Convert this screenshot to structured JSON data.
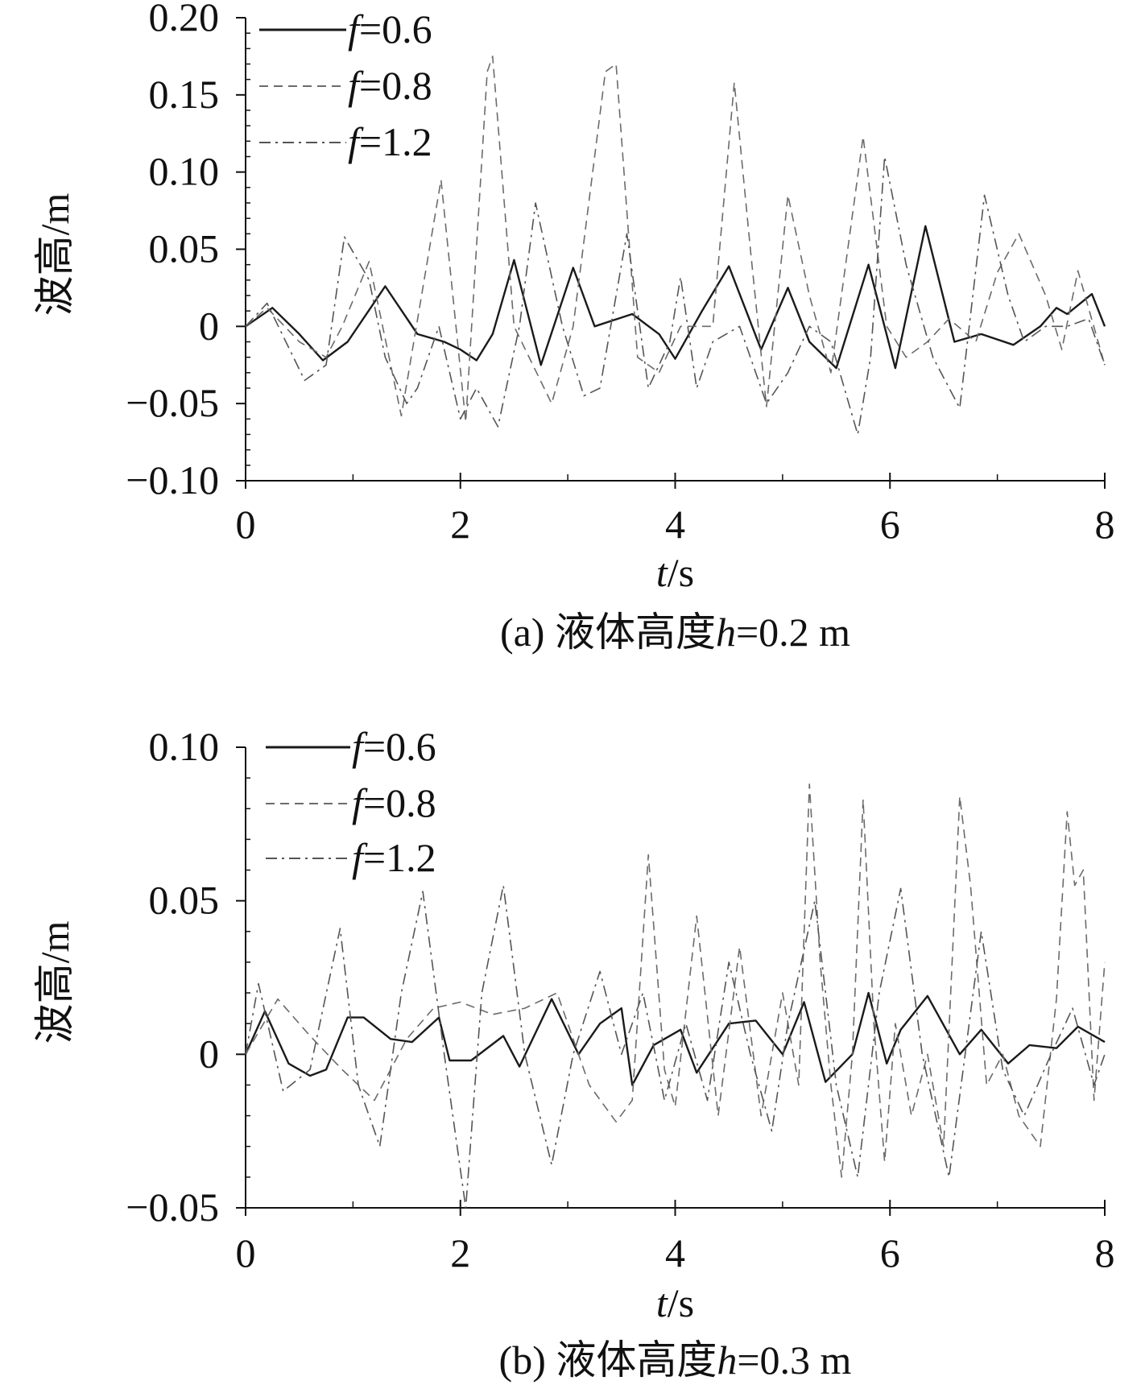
{
  "chart_data": [
    {
      "type": "line",
      "caption": {
        "prefix": "(a) 液体高度",
        "var": "h",
        "suffix": "=0.2 m"
      },
      "xlabel": {
        "var": "t",
        "unit": "/s"
      },
      "ylabel": "波高/m",
      "xlim": [
        0,
        8
      ],
      "ylim": [
        -0.1,
        0.2
      ],
      "xticks": [
        0,
        2,
        4,
        6,
        8
      ],
      "xtick_labels": [
        "0",
        "2",
        "4",
        "6",
        "8"
      ],
      "yticks": [
        -0.1,
        -0.05,
        0,
        0.05,
        0.1,
        0.15,
        0.2
      ],
      "ytick_labels": [
        "−0.10",
        "−0.05",
        "0",
        "0.05",
        "0.10",
        "0.15",
        "0.20"
      ],
      "legend_position": "top-left",
      "grid": false,
      "series": [
        {
          "name": "f=0.6",
          "legend_var": "f",
          "legend_value": "=0.6",
          "style": "solid",
          "color": "#1a1a1a",
          "x": [
            0,
            0.25,
            0.5,
            0.72,
            0.95,
            1.3,
            1.6,
            1.85,
            2.0,
            2.15,
            2.3,
            2.5,
            2.75,
            3.05,
            3.25,
            3.6,
            3.85,
            4.0,
            4.25,
            4.5,
            4.8,
            5.05,
            5.25,
            5.5,
            5.8,
            6.05,
            6.33,
            6.6,
            6.85,
            7.15,
            7.4,
            7.55,
            7.65,
            7.88,
            8.0
          ],
          "y": [
            0.0,
            0.012,
            -0.005,
            -0.022,
            -0.01,
            0.026,
            -0.005,
            -0.01,
            -0.015,
            -0.022,
            -0.005,
            0.043,
            -0.025,
            0.038,
            0.0,
            0.008,
            -0.005,
            -0.021,
            0.01,
            0.039,
            -0.015,
            0.025,
            -0.01,
            -0.027,
            0.04,
            -0.027,
            0.065,
            -0.01,
            -0.005,
            -0.012,
            0.0,
            0.012,
            0.008,
            0.021,
            0.0
          ]
        },
        {
          "name": "f=0.8",
          "legend_var": "f",
          "legend_value": "=0.8",
          "style": "dashed",
          "color": "#6b6b6b",
          "x": [
            0,
            0.2,
            0.5,
            0.75,
            0.9,
            1.15,
            1.45,
            1.82,
            2.05,
            2.25,
            2.3,
            2.5,
            2.85,
            3.05,
            3.35,
            3.45,
            3.65,
            3.85,
            4.05,
            4.35,
            4.55,
            4.7,
            4.85,
            5.05,
            5.25,
            5.45,
            5.75,
            5.97,
            6.15,
            6.35,
            6.55,
            6.8,
            7.0,
            7.2,
            7.45,
            7.6,
            7.75,
            8.0
          ],
          "y": [
            0.0,
            0.012,
            -0.01,
            -0.02,
            0.0,
            0.042,
            -0.058,
            0.095,
            -0.062,
            0.165,
            0.175,
            0.0,
            -0.05,
            0.0,
            0.165,
            0.17,
            -0.02,
            -0.03,
            0.0,
            0.0,
            0.158,
            0.05,
            -0.052,
            0.085,
            0.02,
            -0.03,
            0.123,
            0.0,
            -0.02,
            -0.01,
            0.005,
            -0.01,
            0.035,
            0.06,
            0.02,
            -0.015,
            0.036,
            -0.025
          ]
        },
        {
          "name": "f=1.2",
          "legend_var": "f",
          "legend_value": "=1.2",
          "style": "dashdot",
          "color": "#555555",
          "x": [
            0,
            0.2,
            0.55,
            0.75,
            0.92,
            1.15,
            1.3,
            1.5,
            1.6,
            1.8,
            2.0,
            2.15,
            2.35,
            2.55,
            2.7,
            2.95,
            3.15,
            3.3,
            3.55,
            3.75,
            3.95,
            4.05,
            4.2,
            4.35,
            4.6,
            4.85,
            5.05,
            5.25,
            5.45,
            5.7,
            5.82,
            5.95,
            6.15,
            6.4,
            6.65,
            6.88,
            7.1,
            7.25,
            7.45,
            7.65,
            7.85,
            8.0
          ],
          "y": [
            0.0,
            0.015,
            -0.035,
            -0.025,
            0.058,
            0.03,
            -0.02,
            -0.05,
            -0.04,
            0.0,
            -0.06,
            -0.04,
            -0.065,
            0.0,
            0.08,
            0.0,
            -0.045,
            -0.04,
            0.06,
            -0.04,
            -0.01,
            0.032,
            -0.04,
            -0.01,
            0.0,
            -0.05,
            -0.03,
            0.0,
            -0.01,
            -0.07,
            -0.02,
            0.11,
            0.04,
            -0.02,
            -0.053,
            0.085,
            0.02,
            -0.01,
            0.0,
            0.0,
            0.005,
            -0.025
          ]
        }
      ]
    },
    {
      "type": "line",
      "caption": {
        "prefix": "(b) 液体高度",
        "var": "h",
        "suffix": "=0.3 m"
      },
      "xlabel": {
        "var": "t",
        "unit": "/s"
      },
      "ylabel": "波高/m",
      "xlim": [
        0,
        8
      ],
      "ylim": [
        -0.05,
        0.1
      ],
      "xticks": [
        0,
        2,
        4,
        6,
        8
      ],
      "xtick_labels": [
        "0",
        "2",
        "4",
        "6",
        "8"
      ],
      "yticks": [
        -0.05,
        0,
        0.05,
        0.1
      ],
      "ytick_labels": [
        "−0.05",
        "0",
        "0.05",
        "0.10"
      ],
      "legend_position": "top-left",
      "grid": false,
      "series": [
        {
          "name": "f=0.6",
          "legend_var": "f",
          "legend_value": "=0.6",
          "style": "solid",
          "color": "#1a1a1a",
          "x": [
            0,
            0.18,
            0.4,
            0.6,
            0.75,
            0.95,
            1.1,
            1.35,
            1.55,
            1.8,
            1.9,
            2.1,
            2.4,
            2.55,
            2.85,
            3.1,
            3.3,
            3.5,
            3.6,
            3.8,
            4.05,
            4.2,
            4.5,
            4.75,
            5.0,
            5.2,
            5.4,
            5.65,
            5.8,
            5.97,
            6.1,
            6.35,
            6.65,
            6.85,
            7.1,
            7.3,
            7.55,
            7.75,
            8.0
          ],
          "y": [
            0.0,
            0.014,
            -0.003,
            -0.007,
            -0.005,
            0.012,
            0.012,
            0.005,
            0.004,
            0.012,
            -0.002,
            -0.002,
            0.006,
            -0.004,
            0.018,
            0.0,
            0.01,
            0.015,
            -0.01,
            0.003,
            0.008,
            -0.006,
            0.01,
            0.011,
            0.0,
            0.017,
            -0.009,
            0.0,
            0.02,
            -0.003,
            0.008,
            0.019,
            0.0,
            0.008,
            -0.003,
            0.003,
            0.002,
            0.009,
            0.004
          ]
        },
        {
          "name": "f=0.8",
          "legend_var": "f",
          "legend_value": "=0.8",
          "style": "dashed",
          "color": "#6b6b6b",
          "x": [
            0,
            0.3,
            0.6,
            0.9,
            1.2,
            1.5,
            1.75,
            2.0,
            2.3,
            2.6,
            2.9,
            3.2,
            3.45,
            3.6,
            3.75,
            3.9,
            4.0,
            4.2,
            4.4,
            4.6,
            4.8,
            5.0,
            5.15,
            5.25,
            5.35,
            5.45,
            5.55,
            5.65,
            5.75,
            5.85,
            5.95,
            6.05,
            6.2,
            6.35,
            6.5,
            6.65,
            6.75,
            6.9,
            7.05,
            7.2,
            7.4,
            7.55,
            7.65,
            7.72,
            7.8,
            7.9,
            8.0
          ],
          "y": [
            0.0,
            0.018,
            0.006,
            -0.005,
            -0.015,
            0.005,
            0.015,
            0.017,
            0.013,
            0.015,
            0.02,
            -0.01,
            -0.022,
            -0.015,
            0.065,
            -0.005,
            -0.017,
            0.045,
            -0.02,
            0.035,
            -0.02,
            0.02,
            -0.01,
            0.088,
            0.03,
            -0.01,
            -0.04,
            0.0,
            0.083,
            0.01,
            -0.035,
            0.01,
            -0.02,
            0.0,
            -0.03,
            0.084,
            0.055,
            -0.01,
            0.0,
            -0.02,
            -0.03,
            0.018,
            0.079,
            0.055,
            0.06,
            -0.015,
            0.03
          ]
        },
        {
          "name": "f=1.2",
          "legend_var": "f",
          "legend_value": "=1.2",
          "style": "dashdot",
          "color": "#555555",
          "x": [
            0,
            0.12,
            0.35,
            0.6,
            0.88,
            1.05,
            1.25,
            1.45,
            1.65,
            1.85,
            2.05,
            2.2,
            2.4,
            2.6,
            2.85,
            3.05,
            3.3,
            3.5,
            3.7,
            3.9,
            4.1,
            4.3,
            4.5,
            4.7,
            4.9,
            5.05,
            5.3,
            5.5,
            5.7,
            5.9,
            6.1,
            6.3,
            6.55,
            6.85,
            7.05,
            7.25,
            7.5,
            7.7,
            7.9,
            8.0
          ],
          "y": [
            0.0,
            0.023,
            -0.012,
            -0.005,
            0.041,
            -0.01,
            -0.03,
            0.02,
            0.053,
            0.0,
            -0.05,
            0.02,
            0.055,
            0.0,
            -0.036,
            0.0,
            0.027,
            0.0,
            0.02,
            -0.015,
            0.01,
            -0.015,
            0.03,
            0.0,
            -0.025,
            0.01,
            0.05,
            -0.01,
            -0.04,
            0.02,
            0.054,
            0.0,
            -0.04,
            0.04,
            -0.005,
            -0.02,
            0.0,
            0.015,
            -0.01,
            0.0
          ]
        }
      ]
    }
  ]
}
